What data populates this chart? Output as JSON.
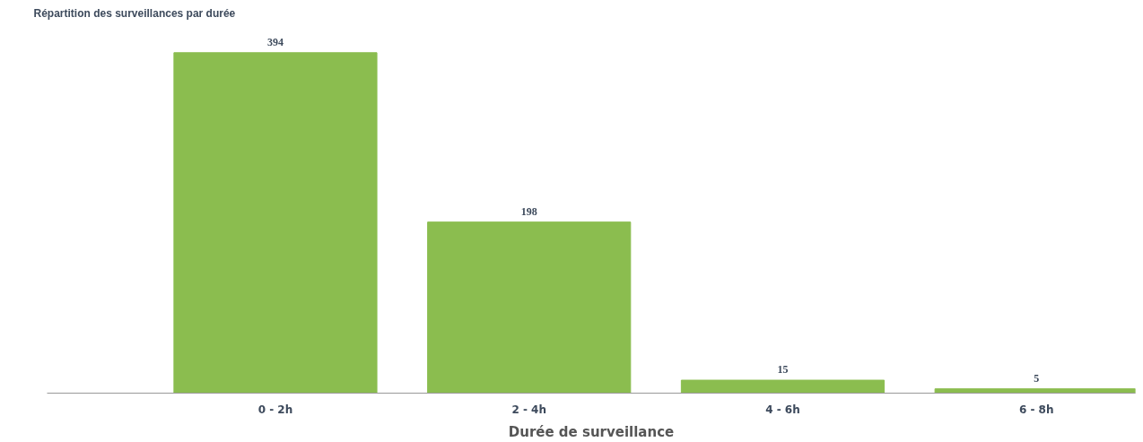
{
  "chart_data": {
    "type": "bar",
    "title": "Répartition des surveillances par durée",
    "xlabel": "Durée de surveillance",
    "categories": [
      "0 - 2h",
      "2 - 4h",
      "4 - 6h",
      "6 - 8h"
    ],
    "values": [
      394,
      198,
      15,
      5
    ],
    "color": "#8bbd4f",
    "data_labels": true
  }
}
